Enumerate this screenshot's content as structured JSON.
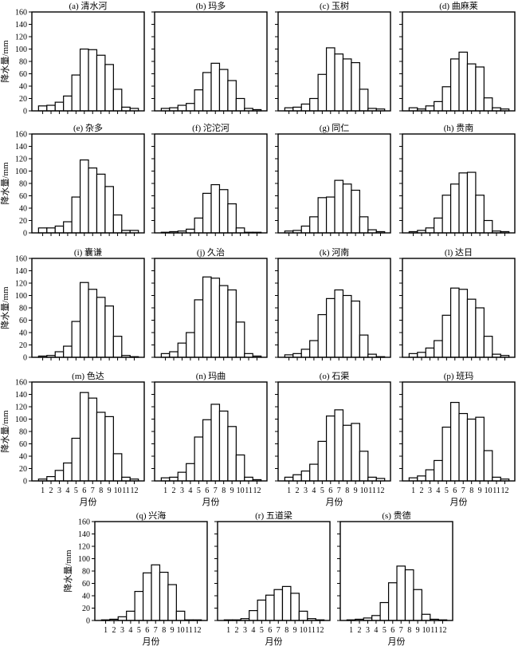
{
  "chart_data": {
    "type": "bar",
    "ylabel": "降水量/mm",
    "xlabel": "月份",
    "ylim": [
      0,
      160
    ],
    "yticks": [
      0,
      20,
      40,
      60,
      80,
      100,
      120,
      140,
      160
    ],
    "categories": [
      "1",
      "2",
      "3",
      "4",
      "5",
      "6",
      "7",
      "8",
      "9",
      "10",
      "11",
      "12"
    ],
    "grid": false,
    "panels": [
      {
        "title": "(a) 清水河",
        "values": [
          8,
          9,
          14,
          24,
          58,
          100,
          99,
          90,
          75,
          35,
          6,
          4
        ]
      },
      {
        "title": "(b) 玛多",
        "values": [
          4,
          5,
          9,
          12,
          34,
          62,
          77,
          67,
          49,
          20,
          4,
          2
        ]
      },
      {
        "title": "(c) 玉树",
        "values": [
          5,
          6,
          11,
          20,
          59,
          102,
          92,
          84,
          78,
          35,
          4,
          3
        ]
      },
      {
        "title": "(d) 曲麻莱",
        "values": [
          5,
          3,
          8,
          15,
          39,
          84,
          95,
          76,
          71,
          21,
          5,
          3
        ]
      },
      {
        "title": "(e) 杂多",
        "values": [
          8,
          8,
          11,
          18,
          58,
          118,
          105,
          95,
          75,
          29,
          4,
          4
        ]
      },
      {
        "title": "(f) 沱沱河",
        "values": [
          1,
          2,
          3,
          6,
          24,
          64,
          78,
          70,
          47,
          8,
          1,
          1
        ]
      },
      {
        "title": "(g) 同仁",
        "values": [
          3,
          4,
          11,
          26,
          57,
          58,
          85,
          79,
          69,
          26,
          5,
          2
        ]
      },
      {
        "title": "(h) 贵南",
        "values": [
          2,
          4,
          8,
          24,
          61,
          79,
          97,
          98,
          61,
          20,
          3,
          2
        ]
      },
      {
        "title": "(i) 囊谦",
        "values": [
          2,
          3,
          9,
          18,
          58,
          121,
          110,
          97,
          83,
          34,
          3,
          1
        ]
      },
      {
        "title": "(j) 久治",
        "values": [
          6,
          9,
          23,
          40,
          93,
          130,
          128,
          116,
          109,
          57,
          6,
          2
        ]
      },
      {
        "title": "(k) 河南",
        "values": [
          4,
          6,
          13,
          27,
          69,
          95,
          109,
          100,
          91,
          36,
          5,
          1
        ]
      },
      {
        "title": "(l) 达日",
        "values": [
          6,
          8,
          15,
          27,
          68,
          112,
          110,
          94,
          80,
          34,
          5,
          3
        ]
      },
      {
        "title": "(m) 色达",
        "values": [
          3,
          7,
          17,
          29,
          69,
          143,
          134,
          111,
          104,
          44,
          6,
          3
        ]
      },
      {
        "title": "(n) 玛曲",
        "values": [
          5,
          6,
          14,
          28,
          71,
          99,
          124,
          113,
          88,
          42,
          6,
          2
        ]
      },
      {
        "title": "(o) 石渠",
        "values": [
          6,
          10,
          16,
          27,
          64,
          105,
          115,
          90,
          93,
          48,
          6,
          4
        ]
      },
      {
        "title": "(p) 班玛",
        "values": [
          5,
          8,
          18,
          33,
          87,
          127,
          109,
          100,
          103,
          49,
          6,
          3
        ]
      },
      {
        "title": "(q) 兴海",
        "values": [
          1,
          2,
          6,
          15,
          47,
          77,
          90,
          78,
          58,
          15,
          1,
          1
        ]
      },
      {
        "title": "(r) 五道梁",
        "values": [
          1,
          1,
          3,
          16,
          33,
          41,
          50,
          55,
          44,
          15,
          3,
          1
        ]
      },
      {
        "title": "(s) 贵德",
        "values": [
          1,
          2,
          4,
          8,
          29,
          61,
          88,
          82,
          50,
          10,
          2,
          1
        ]
      }
    ]
  }
}
